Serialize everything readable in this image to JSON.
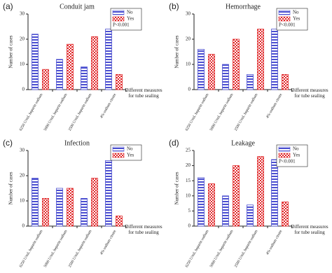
{
  "chart_data": [
    {
      "type": "bar",
      "panel_label": "(a)",
      "title": "Conduit jam",
      "ylabel": "Number of cases",
      "xlabel": "Different measures for tube sealing",
      "categories": [
        "6250 U/mL heparin sodium",
        "5000 U/mL heparin sodium",
        "2500 U/mL heparin sodium",
        "4% sodium citrate"
      ],
      "series": [
        {
          "name": "No",
          "color": "#4b4fd0",
          "pattern": "hatch",
          "values": [
            22,
            12,
            9,
            24
          ]
        },
        {
          "name": "Yes",
          "color": "#e0282a",
          "pattern": "checker",
          "values": [
            8,
            18,
            21,
            6
          ]
        }
      ],
      "annotation": "P<0.001",
      "ylim": [
        0,
        30
      ],
      "yticks": [
        0,
        10,
        20,
        30
      ]
    },
    {
      "type": "bar",
      "panel_label": "(b)",
      "title": "Hemorrhage",
      "ylabel": "Number of cases",
      "xlabel": "Different measures for tube sealing",
      "categories": [
        "6250 U/mL heparin sodium",
        "5000 U/mL heparin sodium",
        "2500 U/mL heparin sodium",
        "4% sodium citrate"
      ],
      "series": [
        {
          "name": "No",
          "color": "#4b4fd0",
          "pattern": "hatch",
          "values": [
            16,
            10,
            6,
            24
          ]
        },
        {
          "name": "Yes",
          "color": "#e0282a",
          "pattern": "checker",
          "values": [
            14,
            20,
            24,
            6
          ]
        }
      ],
      "annotation": "P<0.001",
      "ylim": [
        0,
        30
      ],
      "yticks": [
        0,
        10,
        20,
        30
      ]
    },
    {
      "type": "bar",
      "panel_label": "(c)",
      "title": "Infection",
      "ylabel": "Number of cases",
      "xlabel": "Different measures for tube sealing",
      "categories": [
        "6250 U/mL heparin sodium",
        "5000 U/mL heparin sodium",
        "2500 U/mL heparin sodium",
        "4% sodium citrate"
      ],
      "series": [
        {
          "name": "No",
          "color": "#4b4fd0",
          "pattern": "hatch",
          "values": [
            19,
            15,
            11,
            26
          ]
        },
        {
          "name": "Yes",
          "color": "#e0282a",
          "pattern": "checker",
          "values": [
            11,
            15,
            19,
            4
          ]
        }
      ],
      "ylim": [
        0,
        30
      ],
      "yticks": [
        0,
        10,
        20,
        30
      ]
    },
    {
      "type": "bar",
      "panel_label": "(d)",
      "title": "Leakage",
      "ylabel": "Number of cases",
      "xlabel": "Different measures for tube sealing",
      "categories": [
        "6250 U/mL heparin sodium",
        "5000 U/mL heparin sodium",
        "2500 U/mL heparin sodium",
        "4% sodium citrate"
      ],
      "series": [
        {
          "name": "No",
          "color": "#4b4fd0",
          "pattern": "hatch",
          "values": [
            16,
            10,
            7,
            22
          ]
        },
        {
          "name": "Yes",
          "color": "#e0282a",
          "pattern": "checker",
          "values": [
            14,
            20,
            23,
            8
          ]
        }
      ],
      "annotation": "P<0.001",
      "ylim": [
        0,
        25
      ],
      "yticks": [
        0,
        5,
        10,
        15,
        20,
        25
      ]
    }
  ]
}
